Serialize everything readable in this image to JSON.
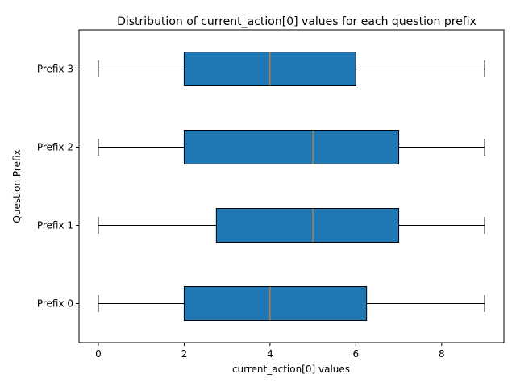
{
  "chart_data": {
    "type": "boxplot",
    "orientation": "horizontal",
    "title": "Distribution of current_action[0] values for each question prefix",
    "xlabel": "current_action[0] values",
    "ylabel": "Question Prefix",
    "xlim": [
      -0.45,
      9.45
    ],
    "xticks": [
      0,
      2,
      4,
      6,
      8
    ],
    "categories": [
      "Prefix 0",
      "Prefix 1",
      "Prefix 2",
      "Prefix 3"
    ],
    "boxes": [
      {
        "label": "Prefix 0",
        "whisker_low": 0,
        "q1": 2,
        "median": 4,
        "q3": 6.25,
        "whisker_high": 9
      },
      {
        "label": "Prefix 1",
        "whisker_low": 0,
        "q1": 2.75,
        "median": 5,
        "q3": 7,
        "whisker_high": 9
      },
      {
        "label": "Prefix 2",
        "whisker_low": 0,
        "q1": 2,
        "median": 5,
        "q3": 7,
        "whisker_high": 9
      },
      {
        "label": "Prefix 3",
        "whisker_low": 0,
        "q1": 2,
        "median": 4,
        "q3": 6,
        "whisker_high": 9
      }
    ],
    "colors": {
      "box_fill": "#1f77b4",
      "median": "#ff7f0e",
      "lines": "#000000"
    },
    "grid": false,
    "legend": "none"
  }
}
